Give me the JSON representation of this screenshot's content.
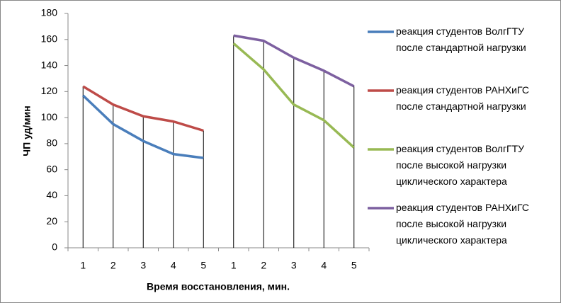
{
  "chart_data": {
    "type": "line",
    "xlabel": "Время восстановления,  мин.",
    "ylabel": "ЧП уд/мин",
    "categories": [
      "1",
      "2",
      "3",
      "4",
      "5",
      "1",
      "2",
      "3",
      "4",
      "5"
    ],
    "ylim": [
      0,
      180
    ],
    "yticks": [
      0,
      20,
      40,
      60,
      80,
      100,
      120,
      140,
      160,
      180
    ],
    "grid": false,
    "legend": "right",
    "drop_lines": true,
    "series": [
      {
        "name": "реакция студентов ВолгГТУ после стандартной нагрузки",
        "color": "#4a7ebb",
        "values": [
          117,
          95,
          82,
          72,
          69,
          null,
          null,
          null,
          null,
          null
        ]
      },
      {
        "name": "реакция студентов РАНХиГС после стандартной нагрузки",
        "color": "#be4b48",
        "values": [
          124,
          110,
          101,
          97,
          90,
          null,
          null,
          null,
          null,
          null
        ]
      },
      {
        "name": "реакция студентов ВолгГТУ после высокой нагрузки циклического характера",
        "color": "#98b954",
        "values": [
          null,
          null,
          null,
          null,
          null,
          157,
          137,
          110,
          98,
          77
        ]
      },
      {
        "name": "реакция студентов РАНХиГС после высокой нагрузки циклического характера",
        "color": "#7d60a0",
        "values": [
          null,
          null,
          null,
          null,
          null,
          163,
          159,
          146,
          136,
          124
        ]
      }
    ]
  }
}
